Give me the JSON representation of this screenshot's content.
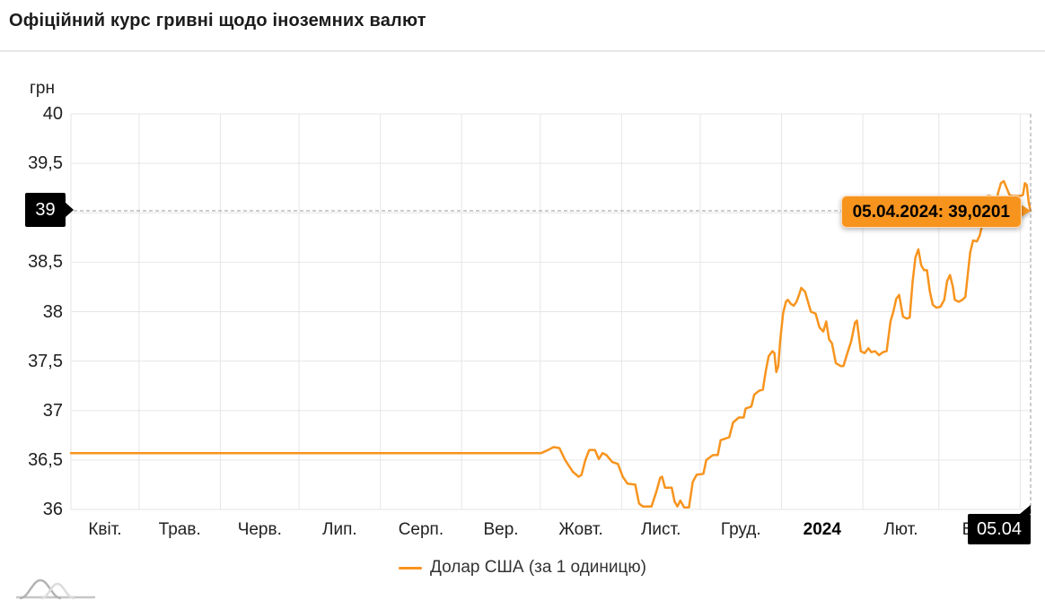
{
  "header": {
    "title": "Офіційний курс гривні щодо іноземних валют"
  },
  "colors": {
    "accent": "#F7941E",
    "grid": "#e6e6e6",
    "crosshair": "#999999",
    "label_box_bg": "#000000",
    "label_box_text": "#ffffff"
  },
  "chart": {
    "unit_label": "грн",
    "crosshair": {
      "y_axis_label": "39",
      "x_axis_label": "05.04"
    },
    "tooltip": {
      "text": "05.04.2024: 39,0201"
    },
    "legend": {
      "label": "Долар США (за 1 одиницю)"
    }
  },
  "chart_data": {
    "type": "line",
    "title": "Офіційний курс гривні щодо іноземних валют",
    "ylabel": "грн",
    "ylim": [
      36,
      40
    ],
    "y_tick_step": 0.5,
    "grid": true,
    "legend_position": "bottom",
    "x_range": [
      "05.04.2023",
      "05.04.2024"
    ],
    "y_ticks": [
      {
        "label": "40",
        "value": 40
      },
      {
        "label": "39,5",
        "value": 39.5
      },
      {
        "label": "39",
        "value": 39
      },
      {
        "label": "38,5",
        "value": 38.5
      },
      {
        "label": "38",
        "value": 38
      },
      {
        "label": "37,5",
        "value": 37.5
      },
      {
        "label": "37",
        "value": 37
      },
      {
        "label": "36,5",
        "value": 36.5
      },
      {
        "label": "36",
        "value": 36
      }
    ],
    "x_ticks": [
      {
        "label": "Квіт.",
        "bold": false
      },
      {
        "label": "Трав.",
        "bold": false
      },
      {
        "label": "Черв.",
        "bold": false
      },
      {
        "label": "Лип.",
        "bold": false
      },
      {
        "label": "Серп.",
        "bold": false
      },
      {
        "label": "Вер.",
        "bold": false
      },
      {
        "label": "Жовт.",
        "bold": false
      },
      {
        "label": "Лист.",
        "bold": false
      },
      {
        "label": "Груд.",
        "bold": false
      },
      {
        "label": "2024",
        "bold": true
      },
      {
        "label": "Лют.",
        "bold": false
      },
      {
        "label": "Бер.",
        "bold": false
      }
    ],
    "month_boundary_days": [
      0,
      26,
      57,
      87,
      118,
      149,
      179,
      210,
      240,
      271,
      302,
      331,
      362
    ],
    "total_days": 366,
    "highlight_point": {
      "date": "05.04.2024",
      "value": 39.0201,
      "label": "05.04.2024: 39,0201"
    },
    "series": [
      {
        "name": "Долар США (за 1 одиницю)",
        "color": "#F7941E",
        "points": [
          [
            0.0,
            36.57
          ],
          [
            0.49,
            36.57
          ],
          [
            0.497,
            36.6
          ],
          [
            0.503,
            36.63
          ],
          [
            0.509,
            36.62
          ],
          [
            0.515,
            36.5
          ],
          [
            0.523,
            36.38
          ],
          [
            0.529,
            36.33
          ],
          [
            0.532,
            36.35
          ],
          [
            0.536,
            36.5
          ],
          [
            0.54,
            36.6
          ],
          [
            0.546,
            36.6
          ],
          [
            0.55,
            36.51
          ],
          [
            0.554,
            36.57
          ],
          [
            0.558,
            36.55
          ],
          [
            0.564,
            36.48
          ],
          [
            0.57,
            36.46
          ],
          [
            0.575,
            36.33
          ],
          [
            0.58,
            36.26
          ],
          [
            0.588,
            36.25
          ],
          [
            0.592,
            36.06
          ],
          [
            0.596,
            36.03
          ],
          [
            0.605,
            36.03
          ],
          [
            0.61,
            36.18
          ],
          [
            0.614,
            36.32
          ],
          [
            0.616,
            36.33
          ],
          [
            0.619,
            36.22
          ],
          [
            0.626,
            36.22
          ],
          [
            0.629,
            36.08
          ],
          [
            0.632,
            36.03
          ],
          [
            0.635,
            36.09
          ],
          [
            0.639,
            36.02
          ],
          [
            0.644,
            36.02
          ],
          [
            0.648,
            36.28
          ],
          [
            0.652,
            36.35
          ],
          [
            0.659,
            36.36
          ],
          [
            0.662,
            36.5
          ],
          [
            0.669,
            36.55
          ],
          [
            0.674,
            36.55
          ],
          [
            0.677,
            36.7
          ],
          [
            0.686,
            36.73
          ],
          [
            0.69,
            36.88
          ],
          [
            0.696,
            36.93
          ],
          [
            0.701,
            36.93
          ],
          [
            0.703,
            37.02
          ],
          [
            0.709,
            37.04
          ],
          [
            0.712,
            37.16
          ],
          [
            0.717,
            37.2
          ],
          [
            0.721,
            37.21
          ],
          [
            0.724,
            37.4
          ],
          [
            0.727,
            37.55
          ],
          [
            0.731,
            37.6
          ],
          [
            0.733,
            37.58
          ],
          [
            0.735,
            37.39
          ],
          [
            0.737,
            37.45
          ],
          [
            0.739,
            37.7
          ],
          [
            0.742,
            37.98
          ],
          [
            0.745,
            38.1
          ],
          [
            0.747,
            38.12
          ],
          [
            0.75,
            38.08
          ],
          [
            0.753,
            38.06
          ],
          [
            0.756,
            38.1
          ],
          [
            0.759,
            38.18
          ],
          [
            0.761,
            38.24
          ],
          [
            0.765,
            38.2
          ],
          [
            0.768,
            38.1
          ],
          [
            0.771,
            38.0
          ],
          [
            0.776,
            37.98
          ],
          [
            0.78,
            37.84
          ],
          [
            0.784,
            37.8
          ],
          [
            0.787,
            37.9
          ],
          [
            0.79,
            37.72
          ],
          [
            0.793,
            37.68
          ],
          [
            0.797,
            37.48
          ],
          [
            0.802,
            37.45
          ],
          [
            0.805,
            37.45
          ],
          [
            0.808,
            37.55
          ],
          [
            0.813,
            37.7
          ],
          [
            0.817,
            37.89
          ],
          [
            0.819,
            37.91
          ],
          [
            0.823,
            37.6
          ],
          [
            0.827,
            37.58
          ],
          [
            0.831,
            37.63
          ],
          [
            0.834,
            37.59
          ],
          [
            0.838,
            37.6
          ],
          [
            0.842,
            37.56
          ],
          [
            0.846,
            37.59
          ],
          [
            0.85,
            37.6
          ],
          [
            0.854,
            37.9
          ],
          [
            0.857,
            38.0
          ],
          [
            0.86,
            38.13
          ],
          [
            0.863,
            38.17
          ],
          [
            0.867,
            37.95
          ],
          [
            0.871,
            37.93
          ],
          [
            0.874,
            37.94
          ],
          [
            0.877,
            38.3
          ],
          [
            0.88,
            38.55
          ],
          [
            0.883,
            38.63
          ],
          [
            0.886,
            38.47
          ],
          [
            0.889,
            38.42
          ],
          [
            0.892,
            38.42
          ],
          [
            0.895,
            38.2
          ],
          [
            0.898,
            38.07
          ],
          [
            0.902,
            38.04
          ],
          [
            0.906,
            38.05
          ],
          [
            0.91,
            38.12
          ],
          [
            0.913,
            38.31
          ],
          [
            0.916,
            38.37
          ],
          [
            0.919,
            38.25
          ],
          [
            0.921,
            38.12
          ],
          [
            0.925,
            38.1
          ],
          [
            0.929,
            38.12
          ],
          [
            0.932,
            38.15
          ],
          [
            0.935,
            38.42
          ],
          [
            0.937,
            38.6
          ],
          [
            0.94,
            38.72
          ],
          [
            0.944,
            38.71
          ],
          [
            0.947,
            38.77
          ],
          [
            0.95,
            38.9
          ],
          [
            0.952,
            39.1
          ],
          [
            0.955,
            39.17
          ],
          [
            0.958,
            39.17
          ],
          [
            0.961,
            39.05
          ],
          [
            0.964,
            39.08
          ],
          [
            0.966,
            39.2
          ],
          [
            0.969,
            39.3
          ],
          [
            0.972,
            39.32
          ],
          [
            0.975,
            39.25
          ],
          [
            0.978,
            39.18
          ],
          [
            0.981,
            39.17
          ],
          [
            0.985,
            39.17
          ],
          [
            0.989,
            39.17
          ],
          [
            0.992,
            39.18
          ],
          [
            0.994,
            39.3
          ],
          [
            0.996,
            39.28
          ],
          [
            0.998,
            39.1
          ],
          [
            1.0,
            39.0201
          ]
        ]
      }
    ]
  }
}
